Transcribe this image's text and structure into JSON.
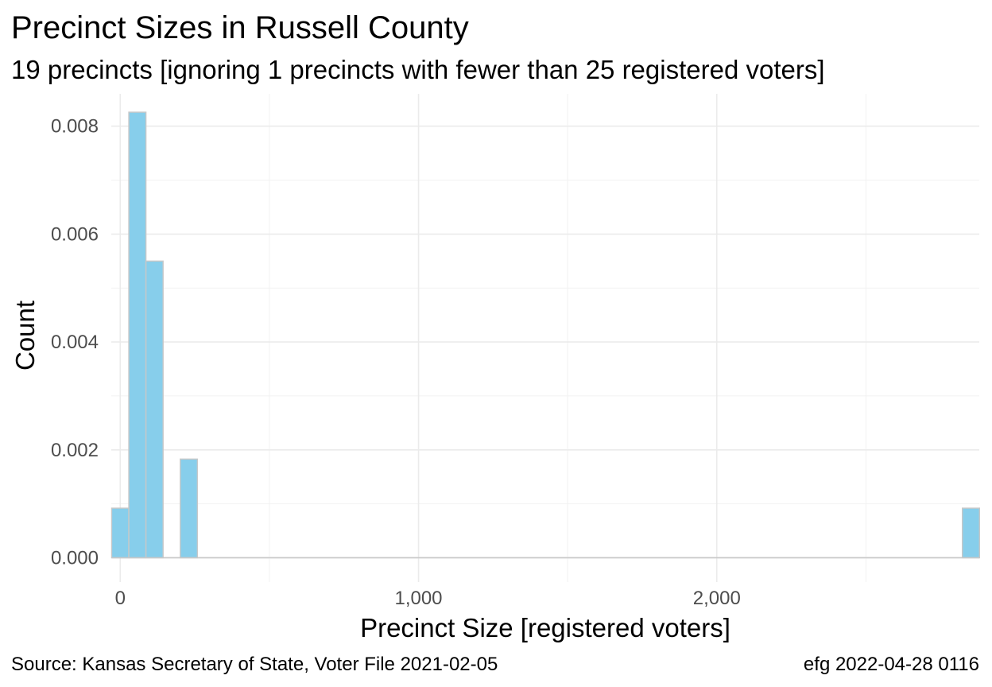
{
  "chart_data": {
    "type": "bar",
    "title": "Precinct Sizes in Russell County",
    "subtitle": "19 precincts [ignoring 1 precincts with fewer than 25 registered voters]",
    "xlabel": "Precinct Size [registered voters]",
    "ylabel": "Count",
    "caption_left": "Source:  Kansas Secretary of State, Voter File  2021-02-05",
    "caption_right": "efg 2022-04-28 0116",
    "bin_width": 57.5,
    "xlim": [
      -30,
      2880
    ],
    "ylim": [
      -0.00045,
      0.0086
    ],
    "x_ticks": [
      0,
      1000,
      2000
    ],
    "x_tick_labels": [
      "0",
      "1,000",
      "2,000"
    ],
    "y_ticks": [
      0,
      0.002,
      0.004,
      0.006,
      0.008
    ],
    "y_tick_labels": [
      "0.000",
      "0.002",
      "0.004",
      "0.006",
      "0.008"
    ],
    "bins": [
      {
        "x_center": 0,
        "value": 0.00092
      },
      {
        "x_center": 57.5,
        "value": 0.00826
      },
      {
        "x_center": 115,
        "value": 0.0055
      },
      {
        "x_center": 230,
        "value": 0.00183
      },
      {
        "x_center": 2852,
        "value": 0.00092
      }
    ],
    "grid": true,
    "legend": "none"
  }
}
